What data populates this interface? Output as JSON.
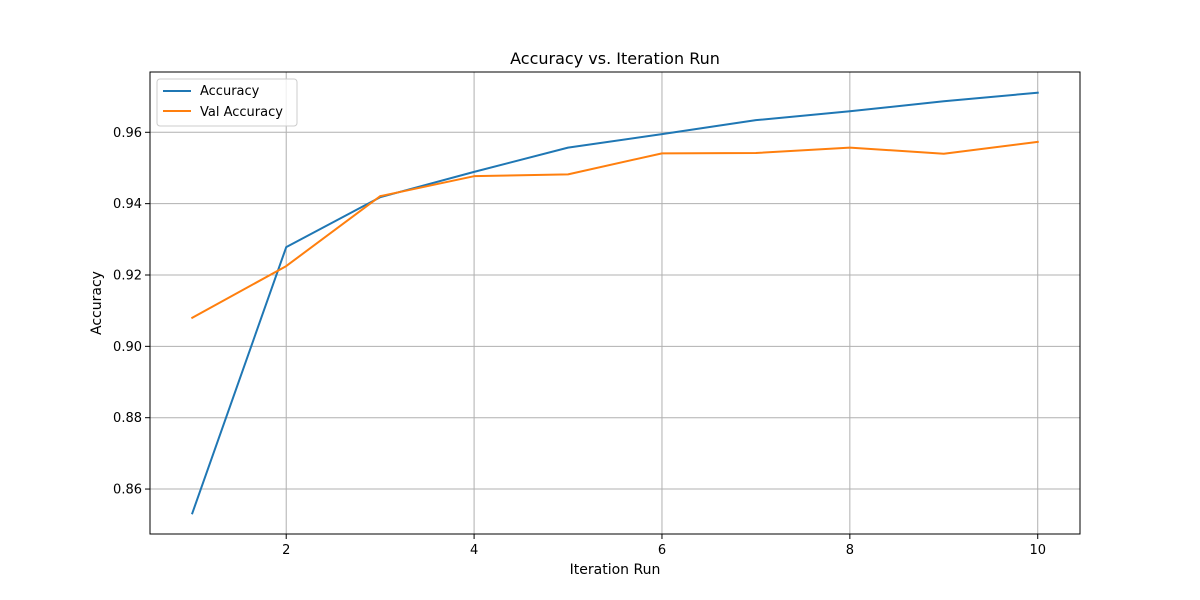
{
  "chart_data": {
    "type": "line",
    "title": "Accuracy vs. Iteration Run",
    "xlabel": "Iteration Run",
    "ylabel": "Accuracy",
    "x": [
      1,
      2,
      3,
      4,
      5,
      6,
      7,
      8,
      9,
      10
    ],
    "series": [
      {
        "name": "Accuracy",
        "color": "#1f77b4",
        "values": [
          0.8532,
          0.9278,
          0.9418,
          0.9489,
          0.9557,
          0.9595,
          0.9634,
          0.9659,
          0.9687,
          0.9711
        ]
      },
      {
        "name": "Val Accuracy",
        "color": "#ff7f0e",
        "values": [
          0.908,
          0.9225,
          0.9421,
          0.9477,
          0.9482,
          0.9541,
          0.9542,
          0.9557,
          0.954,
          0.9573
        ]
      }
    ],
    "xlim": [
      0.55,
      10.45
    ],
    "ylim": [
      0.8474,
      0.9769
    ],
    "xticks": [
      2,
      4,
      6,
      8,
      10
    ],
    "xtick_labels": [
      "2",
      "4",
      "6",
      "8",
      "10"
    ],
    "yticks": [
      0.86,
      0.88,
      0.9,
      0.92,
      0.94,
      0.96
    ],
    "ytick_labels": [
      "0.86",
      "0.88",
      "0.90",
      "0.92",
      "0.94",
      "0.96"
    ],
    "grid": true,
    "legend_position": "top-left"
  }
}
